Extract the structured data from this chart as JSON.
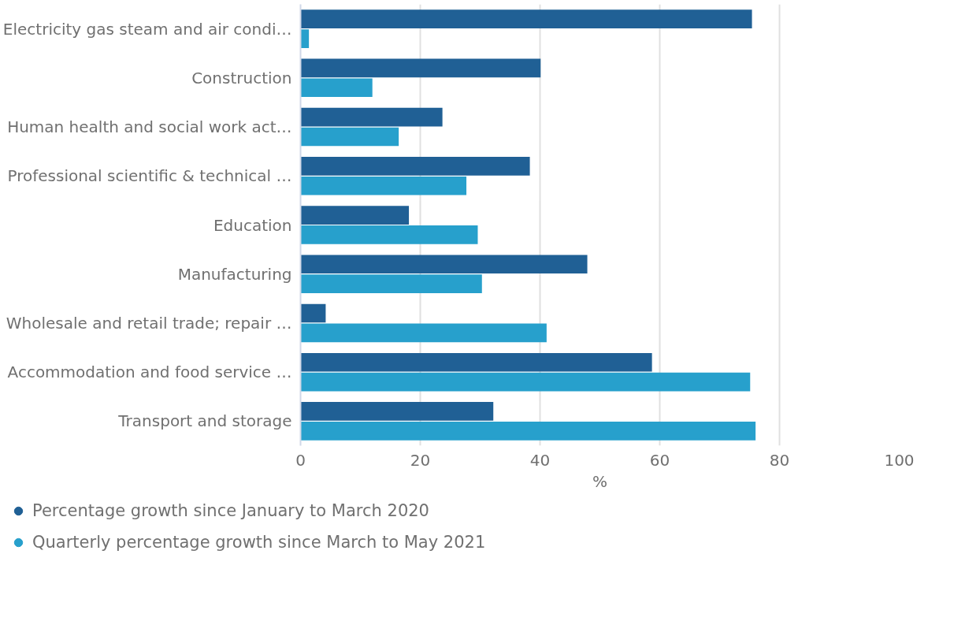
{
  "chart_data": {
    "type": "bar",
    "orientation": "horizontal",
    "xlabel": "%",
    "categories": [
      "Electricity gas steam and air condi…",
      "Construction",
      "Human health and social work act…",
      "Professional scientific & technical …",
      "Education",
      "Manufacturing",
      "Wholesale and retail trade; repair …",
      "Accommodation and food service …",
      "Transport and storage"
    ],
    "series": [
      {
        "name": "Percentage growth since January to March 2020",
        "color": "#206095",
        "values": [
          75.4,
          40.1,
          23.7,
          38.3,
          18.1,
          47.9,
          4.2,
          58.7,
          32.2
        ]
      },
      {
        "name": "Quarterly percentage growth since March to May 2021",
        "color": "#27a0cc",
        "values": [
          1.4,
          12.0,
          16.4,
          27.7,
          29.6,
          30.3,
          41.1,
          75.1,
          76.0
        ]
      }
    ],
    "xlim": [
      0,
      100
    ],
    "xticks": [
      0,
      20,
      40,
      60,
      80,
      100
    ],
    "grid": "x",
    "legend": "bottom"
  }
}
